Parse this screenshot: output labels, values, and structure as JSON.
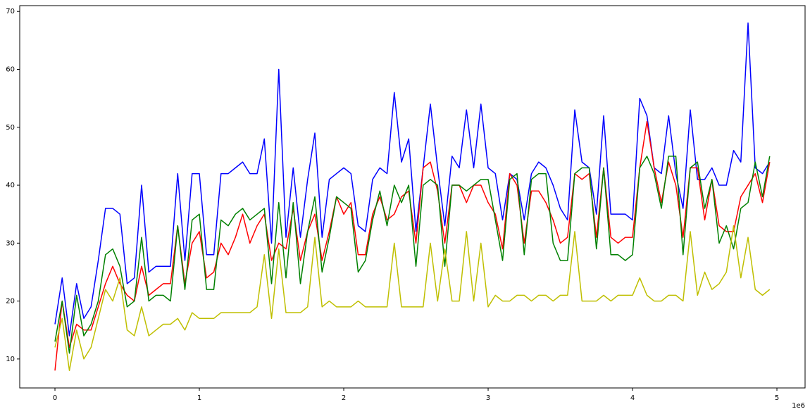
{
  "chart_data": {
    "type": "line",
    "x": [
      0,
      50000,
      100000,
      150000,
      200000,
      250000,
      300000,
      350000,
      400000,
      450000,
      500000,
      550000,
      600000,
      650000,
      700000,
      750000,
      800000,
      850000,
      900000,
      950000,
      1000000,
      1050000,
      1100000,
      1150000,
      1200000,
      1250000,
      1300000,
      1350000,
      1400000,
      1450000,
      1500000,
      1550000,
      1600000,
      1650000,
      1700000,
      1750000,
      1800000,
      1850000,
      1900000,
      1950000,
      2000000,
      2050000,
      2100000,
      2150000,
      2200000,
      2250000,
      2300000,
      2350000,
      2400000,
      2450000,
      2500000,
      2550000,
      2600000,
      2650000,
      2700000,
      2750000,
      2800000,
      2850000,
      2900000,
      2950000,
      3000000,
      3050000,
      3100000,
      3150000,
      3200000,
      3250000,
      3300000,
      3350000,
      3400000,
      3450000,
      3500000,
      3550000,
      3600000,
      3650000,
      3700000,
      3750000,
      3800000,
      3850000,
      3900000,
      3950000,
      4000000,
      4050000,
      4100000,
      4150000,
      4200000,
      4250000,
      4300000,
      4350000,
      4400000,
      4450000,
      4500000,
      4550000,
      4600000,
      4650000,
      4700000,
      4750000,
      4800000,
      4850000,
      4900000,
      4950000
    ],
    "series": [
      {
        "color": "#0000ff",
        "values": [
          16,
          24,
          14,
          23,
          17,
          19,
          27,
          36,
          36,
          35,
          23,
          24,
          40,
          25,
          26,
          26,
          26,
          42,
          27,
          42,
          42,
          28,
          28,
          42,
          42,
          43,
          44,
          42,
          42,
          48,
          30,
          60,
          31,
          43,
          31,
          41,
          49,
          31,
          41,
          42,
          43,
          42,
          33,
          32,
          41,
          43,
          42,
          56,
          44,
          48,
          32,
          43,
          54,
          43,
          33,
          45,
          43,
          53,
          43,
          54,
          43,
          42,
          34,
          42,
          41,
          34,
          42,
          44,
          43,
          40,
          36,
          34,
          53,
          44,
          43,
          35,
          52,
          35,
          35,
          35,
          34,
          55,
          52,
          43,
          42,
          52,
          42,
          36,
          53,
          41,
          41,
          43,
          40,
          40,
          46,
          44,
          68,
          43,
          42,
          44
        ]
      },
      {
        "color": "#ff0000",
        "values": [
          8,
          20,
          12,
          16,
          15,
          15,
          19,
          23,
          26,
          23,
          21,
          20,
          26,
          21,
          22,
          23,
          23,
          33,
          23,
          30,
          32,
          24,
          25,
          30,
          28,
          31,
          35,
          30,
          33,
          35,
          27,
          30,
          29,
          36,
          27,
          32,
          35,
          27,
          32,
          38,
          35,
          37,
          28,
          28,
          35,
          38,
          34,
          35,
          38,
          39,
          30,
          43,
          44,
          39,
          30,
          40,
          40,
          37,
          40,
          40,
          37,
          35,
          29,
          42,
          40,
          30,
          39,
          39,
          37,
          34,
          30,
          31,
          42,
          41,
          42,
          31,
          43,
          31,
          30,
          31,
          31,
          43,
          51,
          43,
          37,
          44,
          40,
          31,
          43,
          43,
          34,
          41,
          33,
          32,
          32,
          38,
          40,
          42,
          37,
          44
        ]
      },
      {
        "color": "#008000",
        "values": [
          13,
          20,
          11,
          21,
          14,
          16,
          20,
          28,
          29,
          26,
          19,
          20,
          31,
          20,
          21,
          21,
          20,
          33,
          22,
          34,
          35,
          22,
          22,
          34,
          33,
          35,
          36,
          34,
          35,
          36,
          23,
          37,
          24,
          37,
          23,
          32,
          38,
          25,
          31,
          38,
          37,
          36,
          25,
          27,
          34,
          39,
          33,
          40,
          37,
          40,
          26,
          40,
          41,
          40,
          26,
          40,
          40,
          39,
          40,
          41,
          41,
          34,
          27,
          41,
          42,
          28,
          41,
          42,
          42,
          30,
          27,
          27,
          42,
          43,
          43,
          29,
          43,
          28,
          28,
          27,
          28,
          43,
          45,
          42,
          36,
          45,
          45,
          28,
          43,
          44,
          36,
          41,
          30,
          33,
          29,
          36,
          37,
          44,
          38,
          45
        ]
      },
      {
        "color": "#bfbf00",
        "values": [
          12,
          17,
          8,
          15,
          10,
          12,
          17,
          22,
          20,
          24,
          15,
          14,
          19,
          14,
          15,
          16,
          16,
          17,
          15,
          18,
          17,
          17,
          17,
          18,
          18,
          18,
          18,
          18,
          19,
          28,
          17,
          29,
          18,
          18,
          18,
          19,
          31,
          19,
          20,
          19,
          19,
          19,
          20,
          19,
          19,
          19,
          19,
          30,
          19,
          19,
          19,
          19,
          30,
          20,
          29,
          20,
          20,
          32,
          20,
          30,
          19,
          21,
          20,
          20,
          21,
          21,
          20,
          21,
          21,
          20,
          21,
          21,
          32,
          20,
          20,
          20,
          21,
          20,
          21,
          21,
          21,
          24,
          21,
          20,
          20,
          21,
          21,
          20,
          32,
          21,
          25,
          22,
          23,
          25,
          33,
          24,
          31,
          22,
          21,
          22
        ]
      }
    ],
    "xlim": [
      -244000,
      5195000
    ],
    "xticks": [
      0,
      {
        "value": 1000000,
        "label": "1"
      },
      {
        "value": 2000000,
        "label": "2"
      },
      {
        "value": 3000000,
        "label": "3"
      },
      {
        "value": 4000000,
        "label": "4"
      },
      {
        "value": 5000000,
        "label": "5"
      }
    ],
    "x_offset_label": "1e6",
    "ylim": [
      5,
      71
    ],
    "yticks": [
      10,
      20,
      30,
      40,
      50,
      60,
      70
    ],
    "grid": false
  }
}
